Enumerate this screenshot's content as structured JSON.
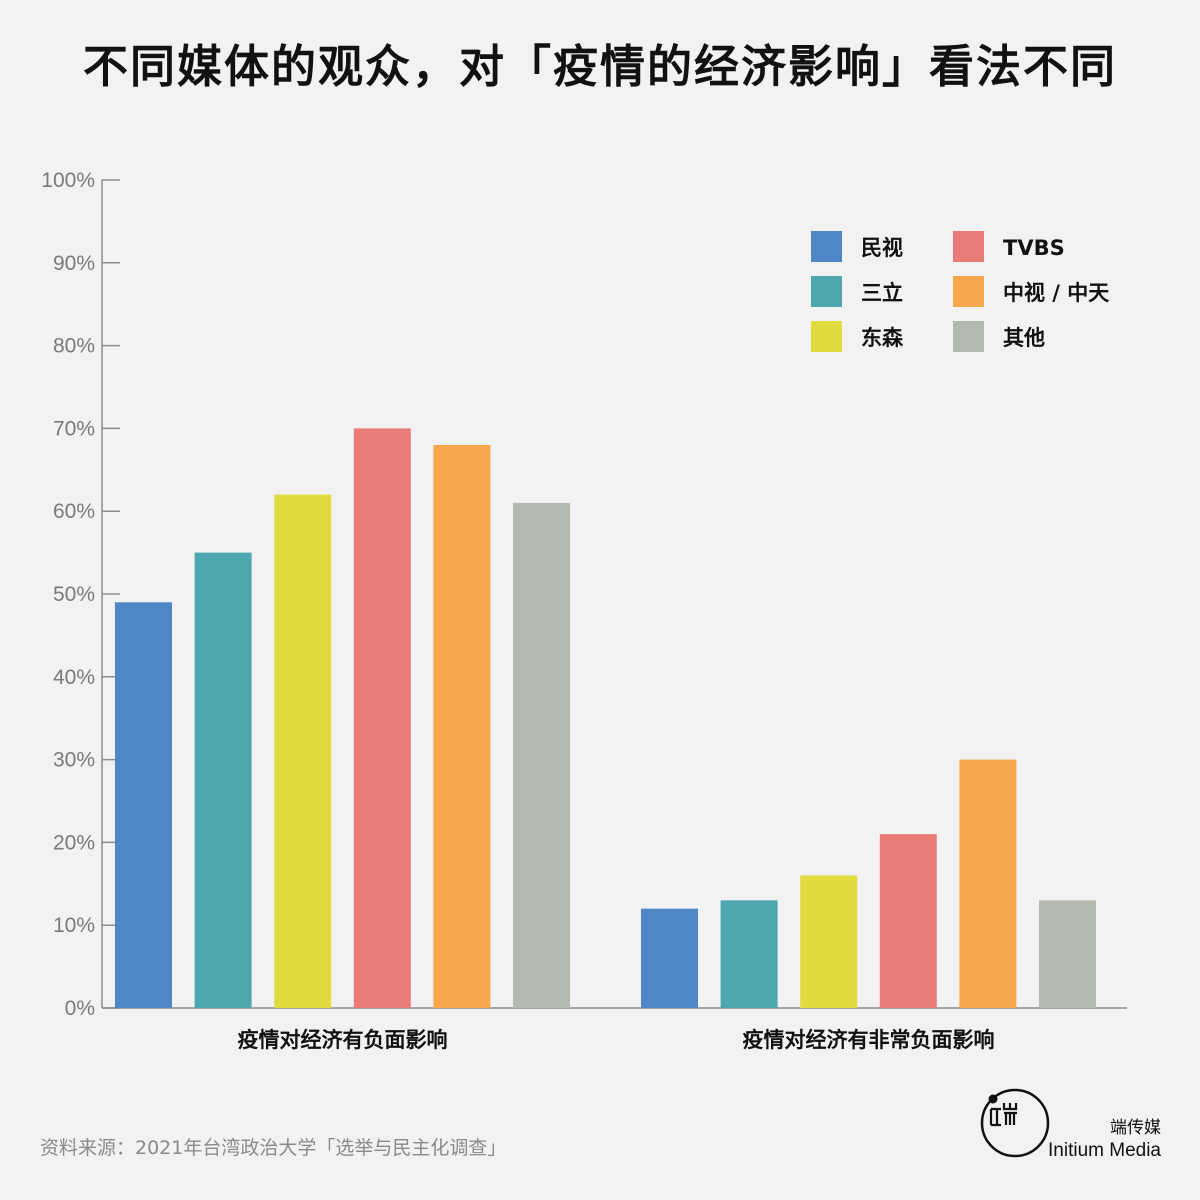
{
  "title": "不同媒体的观众，对「疫情的经济影响」看法不同",
  "source": "资料来源：2021年台湾政治大学「选举与民主化调查」",
  "logo": {
    "name_cn": "端传媒",
    "name_en": "Initium Media"
  },
  "chart_data": {
    "type": "bar",
    "title": "不同媒体的观众，对「疫情的经济影响」看法不同",
    "xlabel": "",
    "ylabel": "",
    "categories": [
      "疫情对经济有负面影响",
      "疫情对经济有非常负面影响"
    ],
    "series": [
      {
        "name": "民视",
        "color": "#4e86c6",
        "values": [
          49,
          12
        ]
      },
      {
        "name": "三立",
        "color": "#4ea6ae",
        "values": [
          55,
          13
        ]
      },
      {
        "name": "东森",
        "color": "#e0dc40",
        "values": [
          62,
          16
        ]
      },
      {
        "name": "TVBS",
        "color": "#ea7c78",
        "values": [
          70,
          21
        ]
      },
      {
        "name": "中视 / 中天",
        "color": "#f8a74c",
        "values": [
          68,
          30
        ]
      },
      {
        "name": "其他",
        "color": "#b5bab0",
        "values": [
          61,
          13
        ]
      }
    ],
    "ylim": [
      0,
      100
    ],
    "yticks": [
      0,
      10,
      20,
      30,
      40,
      50,
      60,
      70,
      80,
      90,
      100
    ],
    "ytick_suffix": "%",
    "grid": false,
    "legend_position": "top-right"
  }
}
